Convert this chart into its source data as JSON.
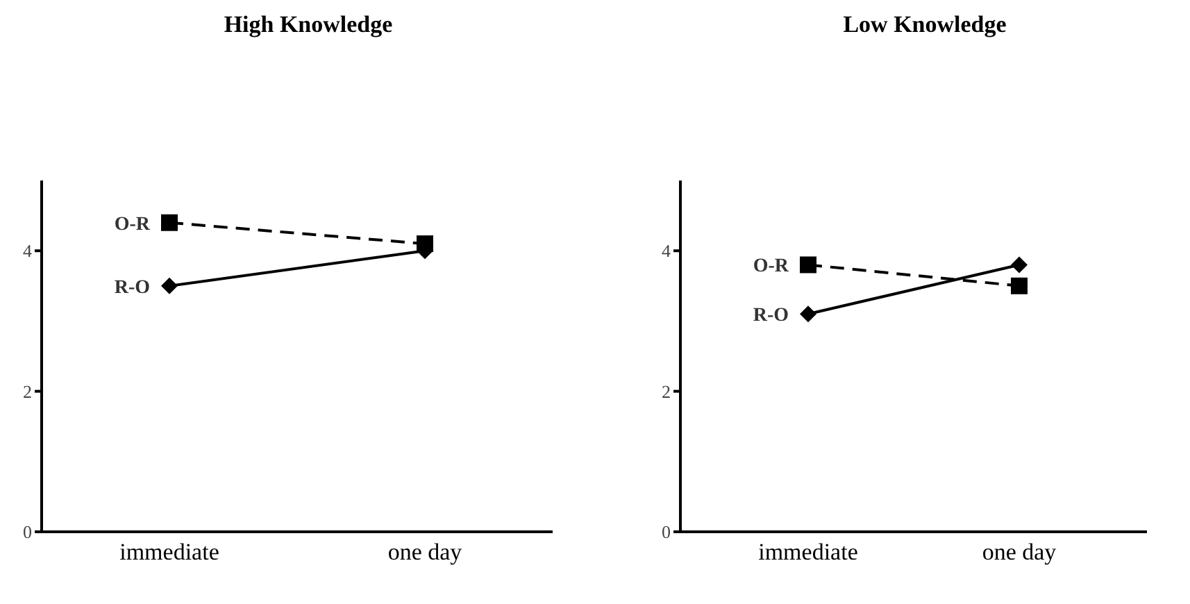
{
  "chart_data": [
    {
      "type": "line",
      "title": "High Knowledge",
      "categories": [
        "immediate",
        "one day"
      ],
      "ylim": [
        0,
        5
      ],
      "yticks": [
        0,
        2,
        4
      ],
      "grid": false,
      "legend": false,
      "series": [
        {
          "name": "O-R",
          "color": "#000000",
          "values": [
            4.4,
            4.1
          ],
          "marker": "square",
          "line_style": "dashed"
        },
        {
          "name": "R-O",
          "color": "#000000",
          "values": [
            3.5,
            4.0
          ],
          "marker": "diamond",
          "line_style": "solid"
        }
      ]
    },
    {
      "type": "line",
      "title": "Low Knowledge",
      "categories": [
        "immediate",
        "one day"
      ],
      "ylim": [
        0,
        5
      ],
      "yticks": [
        0,
        2,
        4
      ],
      "grid": false,
      "legend": false,
      "series": [
        {
          "name": "O-R",
          "color": "#000000",
          "values": [
            3.8,
            3.5
          ],
          "marker": "square",
          "line_style": "dashed"
        },
        {
          "name": "R-O",
          "color": "#000000",
          "values": [
            3.1,
            3.8
          ],
          "marker": "diamond",
          "line_style": "solid"
        }
      ]
    }
  ]
}
